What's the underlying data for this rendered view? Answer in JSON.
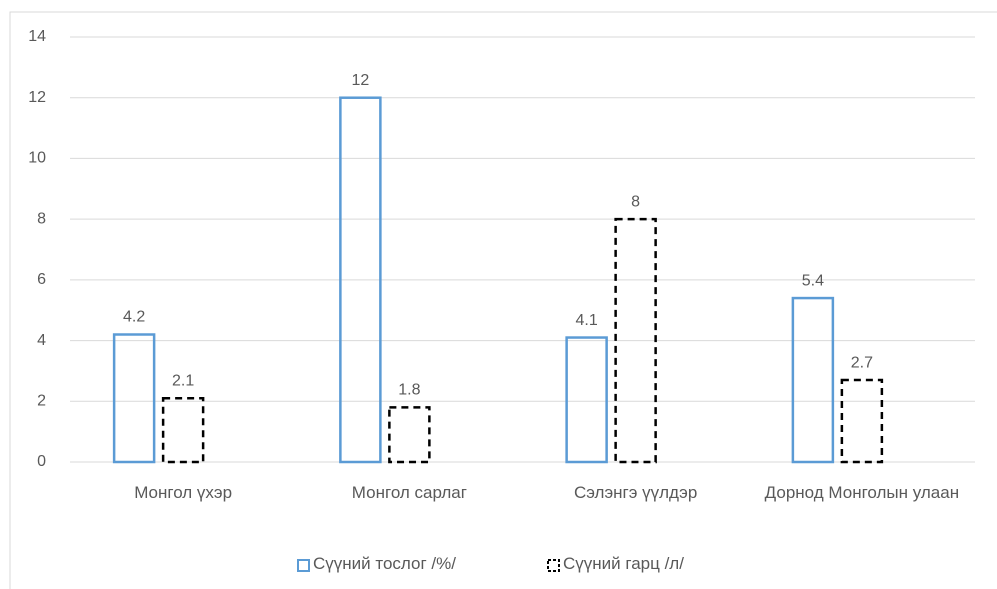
{
  "chart_data": {
    "type": "bar",
    "categories": [
      "Монгол үхэр",
      "Монгол сарлаг",
      "Сэлэнгэ үүлдэр",
      "Дорнод Монголын улаан"
    ],
    "series": [
      {
        "name": "Сүүний тослог /%/",
        "color": "#5b9bd5",
        "values": [
          4.2,
          12,
          4.1,
          5.4
        ]
      },
      {
        "name": "Сүүний гарц /л/",
        "color": "#000000",
        "values": [
          2.1,
          1.8,
          8,
          2.7
        ]
      }
    ],
    "ylim": [
      0,
      14
    ],
    "yticks": [
      0,
      2,
      4,
      6,
      8,
      10,
      12,
      14
    ],
    "grid": true,
    "legend": "bottom"
  }
}
